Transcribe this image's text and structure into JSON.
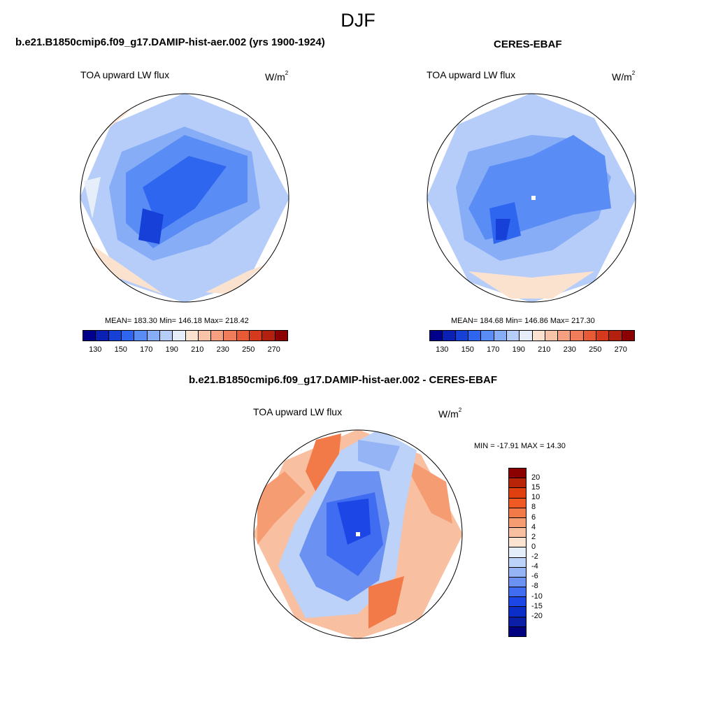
{
  "season": "DJF",
  "panels": {
    "model": {
      "title": "b.e21.B1850cmip6.f09_g17.DAMIP-hist-aer.002 (yrs 1900-1924)",
      "variable": "TOA upward LW flux",
      "units_base": "W/m",
      "units_exp": "2",
      "stats": "MEAN= 183.30  Min= 146.18  Max= 218.42"
    },
    "obs": {
      "title": "CERES-EBAF",
      "variable": "TOA upward LW flux",
      "units_base": "W/m",
      "units_exp": "2",
      "stats": "MEAN= 184.68  Min= 146.86  Max= 217.30"
    },
    "diff": {
      "title": "b.e21.B1850cmip6.f09_g17.DAMIP-hist-aer.002 - CERES-EBAF",
      "variable": "TOA upward LW flux",
      "units_base": "W/m",
      "units_exp": "2",
      "stats": "MIN = -17.91 MAX =  14.30"
    }
  },
  "abs_colorbar": {
    "colors": [
      "#00008b",
      "#0a1fb4",
      "#1740d8",
      "#2f66f0",
      "#5a8cf5",
      "#87adf7",
      "#b5cdf8",
      "#e6eef9",
      "#fbe2cf",
      "#f8c3a6",
      "#f5a07e",
      "#f07d5a",
      "#e85a35",
      "#d63a1c",
      "#b3200f",
      "#8b0000"
    ],
    "ticks": [
      "130",
      "150",
      "170",
      "190",
      "210",
      "230",
      "250",
      "270"
    ]
  },
  "diff_colorbar": {
    "colors": [
      "#8b0000",
      "#b82408",
      "#e0400f",
      "#f05a22",
      "#f27a48",
      "#f59c72",
      "#f8c0a0",
      "#fbe3d2",
      "#e4edfa",
      "#bcd2f8",
      "#94b4f5",
      "#6b92f2",
      "#3f6cf0",
      "#1c46e6",
      "#0b2ec8",
      "#0a1fa6",
      "#000080"
    ],
    "ticks": [
      "20",
      "15",
      "10",
      "8",
      "6",
      "4",
      "2",
      "0",
      "-2",
      "-4",
      "-6",
      "-8",
      "-10",
      "-15",
      "-20"
    ]
  },
  "map_fields": {
    "model": [
      {
        "color": "#b5cdf8",
        "points": [
          [
            0.5,
            0
          ],
          [
            0.8,
            0.12
          ],
          [
            1,
            0.5
          ],
          [
            0.8,
            0.9
          ],
          [
            0.5,
            1
          ],
          [
            0.2,
            0.9
          ],
          [
            0,
            0.5
          ],
          [
            0.15,
            0.15
          ]
        ]
      },
      {
        "color": "#87adf7",
        "points": [
          [
            0.2,
            0.28
          ],
          [
            0.5,
            0.16
          ],
          [
            0.82,
            0.28
          ],
          [
            0.86,
            0.55
          ],
          [
            0.62,
            0.72
          ],
          [
            0.35,
            0.8
          ],
          [
            0.18,
            0.7
          ],
          [
            0.14,
            0.45
          ]
        ]
      },
      {
        "color": "#5a8cf5",
        "points": [
          [
            0.22,
            0.38
          ],
          [
            0.5,
            0.2
          ],
          [
            0.8,
            0.3
          ],
          [
            0.8,
            0.52
          ],
          [
            0.55,
            0.62
          ],
          [
            0.35,
            0.74
          ],
          [
            0.22,
            0.62
          ]
        ]
      },
      {
        "color": "#2f66f0",
        "points": [
          [
            0.3,
            0.45
          ],
          [
            0.52,
            0.3
          ],
          [
            0.7,
            0.35
          ],
          [
            0.55,
            0.55
          ],
          [
            0.38,
            0.66
          ]
        ]
      },
      {
        "color": "#1740d8",
        "points": [
          [
            0.3,
            0.55
          ],
          [
            0.4,
            0.58
          ],
          [
            0.38,
            0.72
          ],
          [
            0.28,
            0.7
          ]
        ]
      },
      {
        "color": "#fbe2cf",
        "points": [
          [
            0.05,
            0.72
          ],
          [
            0.2,
            0.82
          ],
          [
            0.4,
            0.96
          ],
          [
            0.1,
            0.85
          ]
        ]
      },
      {
        "color": "#fbe2cf",
        "points": [
          [
            0.6,
            0.95
          ],
          [
            0.8,
            0.85
          ],
          [
            0.88,
            0.82
          ],
          [
            0.72,
            0.96
          ]
        ]
      },
      {
        "color": "#fbe2cf",
        "points": [
          [
            0.1,
            0.2
          ],
          [
            0.22,
            0.1
          ],
          [
            0.3,
            0.02
          ],
          [
            0.14,
            0.1
          ]
        ]
      },
      {
        "color": "#e6eef9",
        "points": [
          [
            0.02,
            0.42
          ],
          [
            0.1,
            0.4
          ],
          [
            0.06,
            0.6
          ]
        ]
      }
    ],
    "obs": [
      {
        "color": "#b5cdf8",
        "points": [
          [
            0.5,
            0
          ],
          [
            0.8,
            0.12
          ],
          [
            1,
            0.5
          ],
          [
            0.8,
            0.9
          ],
          [
            0.5,
            1
          ],
          [
            0.2,
            0.9
          ],
          [
            0,
            0.5
          ],
          [
            0.15,
            0.15
          ]
        ]
      },
      {
        "color": "#87adf7",
        "points": [
          [
            0.2,
            0.28
          ],
          [
            0.5,
            0.2
          ],
          [
            0.72,
            0.22
          ],
          [
            0.88,
            0.4
          ],
          [
            0.82,
            0.6
          ],
          [
            0.6,
            0.75
          ],
          [
            0.35,
            0.8
          ],
          [
            0.18,
            0.7
          ],
          [
            0.14,
            0.45
          ]
        ]
      },
      {
        "color": "#5a8cf5",
        "points": [
          [
            0.3,
            0.35
          ],
          [
            0.5,
            0.3
          ],
          [
            0.7,
            0.2
          ],
          [
            0.85,
            0.3
          ],
          [
            0.88,
            0.55
          ],
          [
            0.7,
            0.58
          ],
          [
            0.45,
            0.66
          ],
          [
            0.28,
            0.7
          ],
          [
            0.2,
            0.55
          ]
        ]
      },
      {
        "color": "#2f66f0",
        "points": [
          [
            0.3,
            0.55
          ],
          [
            0.42,
            0.52
          ],
          [
            0.45,
            0.68
          ],
          [
            0.32,
            0.72
          ]
        ]
      },
      {
        "color": "#1740d8",
        "points": [
          [
            0.33,
            0.6
          ],
          [
            0.4,
            0.6
          ],
          [
            0.38,
            0.7
          ],
          [
            0.33,
            0.7
          ]
        ]
      },
      {
        "color": "#fbe2cf",
        "points": [
          [
            0.2,
            0.85
          ],
          [
            0.5,
            0.88
          ],
          [
            0.8,
            0.85
          ],
          [
            0.6,
            0.98
          ],
          [
            0.4,
            0.98
          ]
        ]
      },
      {
        "color": "#fbe2cf",
        "points": [
          [
            0.1,
            0.2
          ],
          [
            0.2,
            0.1
          ],
          [
            0.32,
            0.02
          ],
          [
            0.18,
            0.12
          ]
        ]
      },
      {
        "color": "#ffffff",
        "points": [
          [
            0.5,
            0.49
          ],
          [
            0.52,
            0.49
          ],
          [
            0.52,
            0.51
          ],
          [
            0.5,
            0.51
          ]
        ]
      }
    ],
    "diff": [
      {
        "color": "#f8c0a0",
        "points": [
          [
            0.5,
            0
          ],
          [
            0.8,
            0.12
          ],
          [
            1,
            0.5
          ],
          [
            0.8,
            0.9
          ],
          [
            0.5,
            1
          ],
          [
            0.2,
            0.9
          ],
          [
            0,
            0.5
          ],
          [
            0.15,
            0.15
          ]
        ]
      },
      {
        "color": "#f59c72",
        "points": [
          [
            0.02,
            0.3
          ],
          [
            0.15,
            0.2
          ],
          [
            0.25,
            0.3
          ],
          [
            0.1,
            0.45
          ],
          [
            0.02,
            0.55
          ]
        ]
      },
      {
        "color": "#f27a48",
        "points": [
          [
            0.3,
            0.05
          ],
          [
            0.42,
            0.02
          ],
          [
            0.4,
            0.2
          ],
          [
            0.3,
            0.3
          ],
          [
            0.25,
            0.2
          ]
        ]
      },
      {
        "color": "#f59c72",
        "points": [
          [
            0.7,
            0.12
          ],
          [
            0.92,
            0.25
          ],
          [
            0.95,
            0.45
          ],
          [
            0.85,
            0.4
          ]
        ]
      },
      {
        "color": "#bcd2f8",
        "points": [
          [
            0.2,
            0.45
          ],
          [
            0.42,
            0.1
          ],
          [
            0.6,
            0.0
          ],
          [
            0.78,
            0.1
          ],
          [
            0.72,
            0.4
          ],
          [
            0.68,
            0.7
          ],
          [
            0.5,
            0.88
          ],
          [
            0.25,
            0.9
          ],
          [
            0.12,
            0.65
          ]
        ]
      },
      {
        "color": "#6b92f2",
        "points": [
          [
            0.28,
            0.45
          ],
          [
            0.4,
            0.2
          ],
          [
            0.6,
            0.2
          ],
          [
            0.65,
            0.45
          ],
          [
            0.6,
            0.72
          ],
          [
            0.45,
            0.82
          ],
          [
            0.3,
            0.75
          ],
          [
            0.22,
            0.6
          ]
        ]
      },
      {
        "color": "#3f6cf0",
        "points": [
          [
            0.35,
            0.35
          ],
          [
            0.58,
            0.3
          ],
          [
            0.62,
            0.55
          ],
          [
            0.5,
            0.7
          ],
          [
            0.35,
            0.6
          ]
        ]
      },
      {
        "color": "#1c46e6",
        "points": [
          [
            0.4,
            0.35
          ],
          [
            0.55,
            0.33
          ],
          [
            0.56,
            0.5
          ],
          [
            0.45,
            0.55
          ]
        ]
      },
      {
        "color": "#f27a48",
        "points": [
          [
            0.55,
            0.75
          ],
          [
            0.72,
            0.7
          ],
          [
            0.68,
            0.88
          ],
          [
            0.55,
            0.95
          ]
        ]
      },
      {
        "color": "#94b4f5",
        "points": [
          [
            0.5,
            0.05
          ],
          [
            0.7,
            0.08
          ],
          [
            0.65,
            0.2
          ],
          [
            0.5,
            0.15
          ]
        ]
      },
      {
        "color": "#ffffff",
        "points": [
          [
            0.49,
            0.49
          ],
          [
            0.51,
            0.49
          ],
          [
            0.51,
            0.51
          ],
          [
            0.49,
            0.51
          ]
        ]
      }
    ]
  }
}
